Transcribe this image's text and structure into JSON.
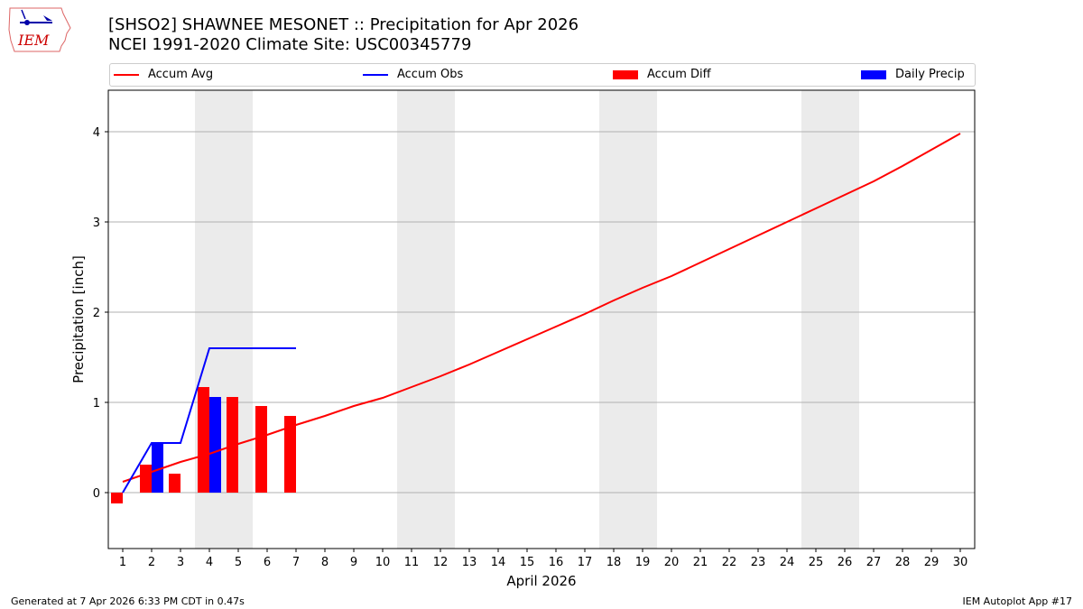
{
  "header": {
    "title_line1": "[SHSO2] SHAWNEE MESONET :: Precipitation for Apr 2026",
    "title_line2": "NCEI 1991-2020 Climate Site: USC00345779",
    "logo_text": "IEM"
  },
  "legend": [
    {
      "label": "Accum Avg",
      "type": "line",
      "color": "#ff0000"
    },
    {
      "label": "Accum Obs",
      "type": "line",
      "color": "#0000ff"
    },
    {
      "label": "Accum Diff",
      "type": "box",
      "color": "#ff0000"
    },
    {
      "label": "Daily Precip",
      "type": "box",
      "color": "#0000ff"
    }
  ],
  "footer": {
    "left": "Generated at 7 Apr 2026 6:33 PM CDT in 0.47s",
    "right": "IEM Autoplot App #17"
  },
  "chart_data": {
    "type": "bar",
    "title": "[SHSO2] SHAWNEE MESONET :: Precipitation for Apr 2026",
    "subtitle": "NCEI 1991-2020 Climate Site: USC00345779",
    "xlabel": "April 2026",
    "ylabel": "Precipitation [inch]",
    "ylim": [
      -0.62,
      4.46
    ],
    "yticks": [
      0,
      1,
      2,
      3,
      4
    ],
    "categories": [
      "1",
      "2",
      "3",
      "4",
      "5",
      "6",
      "7",
      "8",
      "9",
      "10",
      "11",
      "12",
      "13",
      "14",
      "15",
      "16",
      "17",
      "18",
      "19",
      "20",
      "21",
      "22",
      "23",
      "24",
      "25",
      "26",
      "27",
      "28",
      "29",
      "30"
    ],
    "grid": "y",
    "legend_position": "top",
    "weekend_shading": [
      [
        4,
        5
      ],
      [
        11,
        12
      ],
      [
        18,
        19
      ],
      [
        25,
        26
      ]
    ],
    "series": [
      {
        "name": "Accum Avg",
        "type": "line",
        "color": "#ff0000",
        "values": [
          0.12,
          0.23,
          0.34,
          0.43,
          0.54,
          0.64,
          0.75,
          0.85,
          0.96,
          1.05,
          1.17,
          1.29,
          1.42,
          1.56,
          1.7,
          1.84,
          1.98,
          2.13,
          2.27,
          2.4,
          2.55,
          2.7,
          2.85,
          3.0,
          3.15,
          3.3,
          3.45,
          3.62,
          3.8,
          3.98
        ]
      },
      {
        "name": "Accum Obs",
        "type": "line",
        "color": "#0000ff",
        "values": [
          0.0,
          0.55,
          0.55,
          1.6,
          1.6,
          1.6,
          1.6
        ]
      },
      {
        "name": "Accum Diff",
        "type": "bar",
        "color": "#ff0000",
        "values": [
          -0.12,
          0.31,
          0.21,
          1.17,
          1.06,
          0.96,
          0.85
        ]
      },
      {
        "name": "Daily Precip",
        "type": "bar",
        "color": "#0000ff",
        "values": [
          0.0,
          0.55,
          0.0,
          1.06,
          0.0,
          0.0,
          0.0
        ]
      }
    ]
  }
}
